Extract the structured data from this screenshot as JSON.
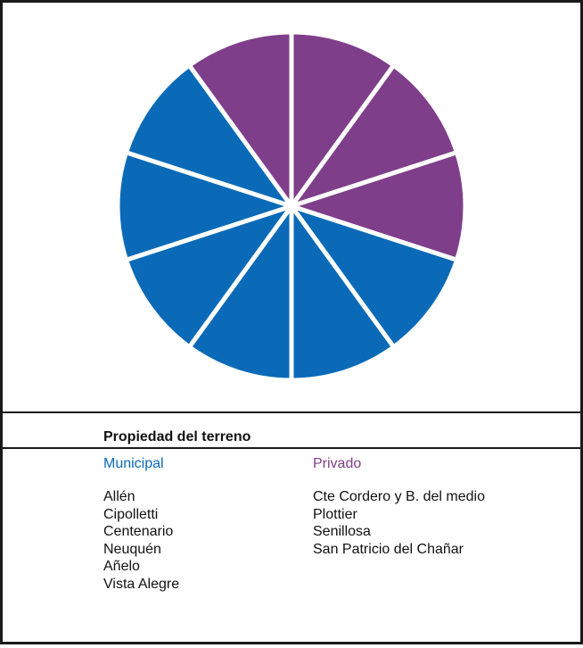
{
  "chart_data": {
    "type": "pie",
    "title": "Propiedad del terreno",
    "categories": [
      "Municipal",
      "Privado"
    ],
    "colors": {
      "Municipal": "#0a6ab7",
      "Privado": "#7f3e8a"
    },
    "slices": [
      {
        "label": "Cte Cordero y B. del medio",
        "group": "Privado",
        "value": 1
      },
      {
        "label": "Plottier",
        "group": "Privado",
        "value": 1
      },
      {
        "label": "Senillosa",
        "group": "Privado",
        "value": 1
      },
      {
        "label": "Allén",
        "group": "Municipal",
        "value": 1
      },
      {
        "label": "Cipolletti",
        "group": "Municipal",
        "value": 1
      },
      {
        "label": "Centenario",
        "group": "Municipal",
        "value": 1
      },
      {
        "label": "Neuquén",
        "group": "Municipal",
        "value": 1
      },
      {
        "label": "Añelo",
        "group": "Municipal",
        "value": 1
      },
      {
        "label": "Vista Alegre",
        "group": "Municipal",
        "value": 1
      },
      {
        "label": "San Patricio del Chañar",
        "group": "Privado",
        "value": 1
      }
    ]
  },
  "legend": {
    "title": "Propiedad del terreno",
    "municipal": {
      "label": "Municipal",
      "items": [
        "Allén",
        "Cipolletti",
        "Centenario",
        "Neuquén",
        "Añelo",
        "Vista Alegre"
      ]
    },
    "privado": {
      "label": "Privado",
      "items": [
        "Cte Cordero y B. del medio",
        "Plottier",
        "Senillosa",
        "San Patricio del Chañar"
      ]
    }
  }
}
